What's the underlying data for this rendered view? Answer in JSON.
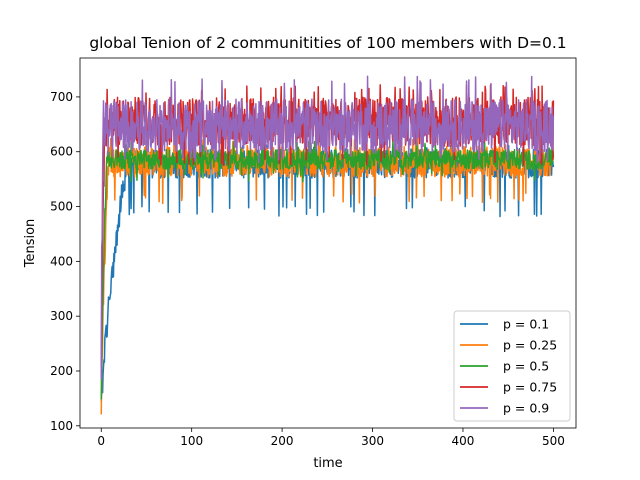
{
  "chart_data": {
    "type": "line",
    "title": "global Tenion of 2 communitities of 100 members with  D=0.1",
    "xlabel": "time",
    "ylabel": "Tension",
    "xlim": [
      -23.5,
      525
    ],
    "ylim": [
      96,
      771
    ],
    "xticks": [
      0,
      100,
      200,
      300,
      400,
      500
    ],
    "yticks": [
      100,
      200,
      300,
      400,
      500,
      600,
      700
    ],
    "grid": false,
    "legend_position": "lower right",
    "series": [
      {
        "name": "p = 0.1",
        "color": "#1f77b4",
        "start": 125,
        "rise_end": 28,
        "mean": 578,
        "spread": 26,
        "low_spike": 480,
        "high_spike": 612
      },
      {
        "name": "p = 0.25",
        "color": "#ff7f0e",
        "start": 140,
        "rise_end": 8,
        "mean": 582,
        "spread": 28,
        "low_spike": 505,
        "high_spike": 625
      },
      {
        "name": "p = 0.5",
        "color": "#2ca02c",
        "start": 150,
        "rise_end": 6,
        "mean": 586,
        "spread": 18,
        "low_spike": 545,
        "high_spike": 620
      },
      {
        "name": "p = 0.75",
        "color": "#d62728",
        "start": 185,
        "rise_end": 4,
        "mean": 655,
        "spread": 45,
        "low_spike": 575,
        "high_spike": 722
      },
      {
        "name": "p = 0.9",
        "color": "#9467bd",
        "start": 230,
        "rise_end": 2,
        "mean": 648,
        "spread": 48,
        "low_spike": 580,
        "high_spike": 738
      }
    ]
  }
}
